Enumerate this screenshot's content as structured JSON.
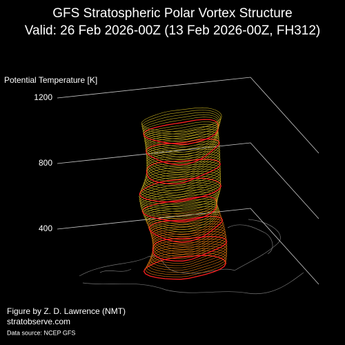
{
  "chart_data": {
    "type": "3d-isentropic",
    "title": "GFS Stratospheric Polar Vortex Structure",
    "subtitle": "Valid: 26 Feb 2026-00Z  (13 Feb 2026-00Z, FH312)",
    "zlabel": "Potential Temperature [K]",
    "zlim": [
      400,
      1200
    ],
    "zticks": [
      400,
      800,
      1200
    ],
    "credits": [
      "Figure by Z. D. Lawrence (NMT)",
      "stratobserve.com",
      "Data source: NCEP GFS"
    ]
  }
}
